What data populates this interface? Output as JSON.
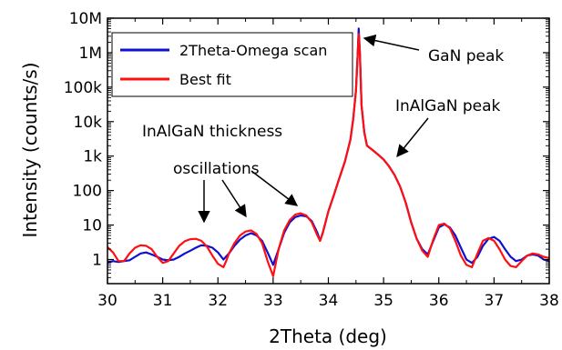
{
  "chart_data": {
    "type": "line",
    "xlabel": "2Theta (deg)",
    "ylabel": "Intensity (counts/s)",
    "xlim": [
      30,
      38
    ],
    "ylim": [
      0.2,
      10000000
    ],
    "yscale": "log",
    "grid": false,
    "legend_position": "top-left",
    "x_ticks": [
      30,
      31,
      32,
      33,
      34,
      35,
      36,
      37,
      38
    ],
    "x_tick_labels": [
      "30",
      "31",
      "32",
      "33",
      "34",
      "35",
      "36",
      "37",
      "38"
    ],
    "y_ticks": [
      1,
      10,
      100,
      1000,
      10000,
      100000,
      1000000,
      10000000
    ],
    "y_tick_labels": [
      "1",
      "10",
      "100",
      "1k",
      "10k",
      "100k",
      "1M",
      "10M"
    ],
    "series": [
      {
        "name": "2Theta-Omega scan",
        "color": "#1010d0",
        "x": [
          30.0,
          30.1,
          30.2,
          30.3,
          30.4,
          30.5,
          30.6,
          30.7,
          30.8,
          30.9,
          31.0,
          31.1,
          31.2,
          31.3,
          31.4,
          31.5,
          31.6,
          31.7,
          31.8,
          31.9,
          32.0,
          32.1,
          32.2,
          32.3,
          32.4,
          32.5,
          32.6,
          32.7,
          32.8,
          32.9,
          33.0,
          33.1,
          33.2,
          33.3,
          33.4,
          33.5,
          33.6,
          33.7,
          33.8,
          33.85,
          33.9,
          34.0,
          34.1,
          34.2,
          34.3,
          34.4,
          34.45,
          34.5,
          34.53,
          34.55,
          34.57,
          34.6,
          34.65,
          34.7,
          34.8,
          34.9,
          35.0,
          35.1,
          35.2,
          35.3,
          35.4,
          35.5,
          35.6,
          35.7,
          35.8,
          35.9,
          36.0,
          36.1,
          36.2,
          36.3,
          36.4,
          36.5,
          36.6,
          36.7,
          36.8,
          36.9,
          37.0,
          37.1,
          37.2,
          37.3,
          37.4,
          37.5,
          37.6,
          37.7,
          37.8,
          37.9,
          38.0
        ],
        "y": [
          0.8,
          0.9,
          0.85,
          0.9,
          0.95,
          1.2,
          1.5,
          1.6,
          1.4,
          1.2,
          1.0,
          0.95,
          1.0,
          1.2,
          1.5,
          1.8,
          2.2,
          2.6,
          2.5,
          2.2,
          1.6,
          1.0,
          1.5,
          2.5,
          3.8,
          5.0,
          5.8,
          5.0,
          3.5,
          1.6,
          0.7,
          2.0,
          6.0,
          12.0,
          17.0,
          19.0,
          18.0,
          13.0,
          6.0,
          3.5,
          6.0,
          25.0,
          75.0,
          230.0,
          700.0,
          3000.0,
          12000.0,
          80000.0,
          800000.0,
          5000000.0,
          1000000.0,
          30000.0,
          5000.0,
          2000.0,
          1500.0,
          1100.0,
          800.0,
          500.0,
          280.0,
          130.0,
          45.0,
          12.0,
          4.0,
          2.0,
          1.4,
          3.5,
          8.5,
          10.5,
          8.5,
          5.0,
          2.2,
          1.0,
          0.8,
          1.2,
          2.5,
          4.0,
          4.5,
          3.5,
          2.0,
          1.2,
          0.9,
          1.0,
          1.3,
          1.4,
          1.3,
          1.0,
          0.9
        ]
      },
      {
        "name": "Best fit",
        "color": "#ff1010",
        "x": [
          30.0,
          30.1,
          30.2,
          30.3,
          30.4,
          30.5,
          30.6,
          30.7,
          30.8,
          30.9,
          31.0,
          31.1,
          31.2,
          31.3,
          31.4,
          31.5,
          31.6,
          31.7,
          31.8,
          31.9,
          32.0,
          32.1,
          32.15,
          32.2,
          32.3,
          32.4,
          32.5,
          32.6,
          32.7,
          32.8,
          32.9,
          33.0,
          33.1,
          33.2,
          33.3,
          33.4,
          33.5,
          33.6,
          33.7,
          33.8,
          33.85,
          33.9,
          34.0,
          34.1,
          34.2,
          34.3,
          34.4,
          34.45,
          34.5,
          34.53,
          34.55,
          34.57,
          34.6,
          34.65,
          34.7,
          34.8,
          34.9,
          35.0,
          35.1,
          35.2,
          35.3,
          35.4,
          35.5,
          35.6,
          35.7,
          35.8,
          35.9,
          36.0,
          36.1,
          36.2,
          36.3,
          36.4,
          36.5,
          36.6,
          36.7,
          36.8,
          36.9,
          37.0,
          37.1,
          37.2,
          37.3,
          37.4,
          37.5,
          37.6,
          37.7,
          37.8,
          37.9,
          38.0
        ],
        "y": [
          2.3,
          1.6,
          0.9,
          0.9,
          1.5,
          2.2,
          2.6,
          2.5,
          2.0,
          1.2,
          0.8,
          0.9,
          1.5,
          2.5,
          3.4,
          3.9,
          4.0,
          3.5,
          2.4,
          1.3,
          0.75,
          0.6,
          0.9,
          1.5,
          3.0,
          5.0,
          6.5,
          7.0,
          5.5,
          3.0,
          0.9,
          0.33,
          2.0,
          7.0,
          14.0,
          20.0,
          22.0,
          19.0,
          12.0,
          5.0,
          3.5,
          6.0,
          25.0,
          75.0,
          230.0,
          700.0,
          3000.0,
          12000.0,
          80000.0,
          800000.0,
          3500000.0,
          1000000.0,
          30000.0,
          5000.0,
          2000.0,
          1500.0,
          1100.0,
          800.0,
          500.0,
          280.0,
          130.0,
          45.0,
          12.0,
          4.0,
          1.8,
          1.2,
          3.8,
          10.0,
          11.0,
          8.0,
          3.5,
          1.3,
          0.7,
          0.6,
          1.5,
          3.5,
          4.2,
          3.5,
          2.0,
          1.0,
          0.65,
          0.6,
          0.9,
          1.3,
          1.5,
          1.4,
          1.2,
          1.1
        ]
      }
    ],
    "annotations": [
      {
        "label": "GaN peak"
      },
      {
        "label": "InAlGaN peak"
      },
      {
        "label": "InAlGaN thickness"
      },
      {
        "label": "oscillations"
      }
    ]
  }
}
